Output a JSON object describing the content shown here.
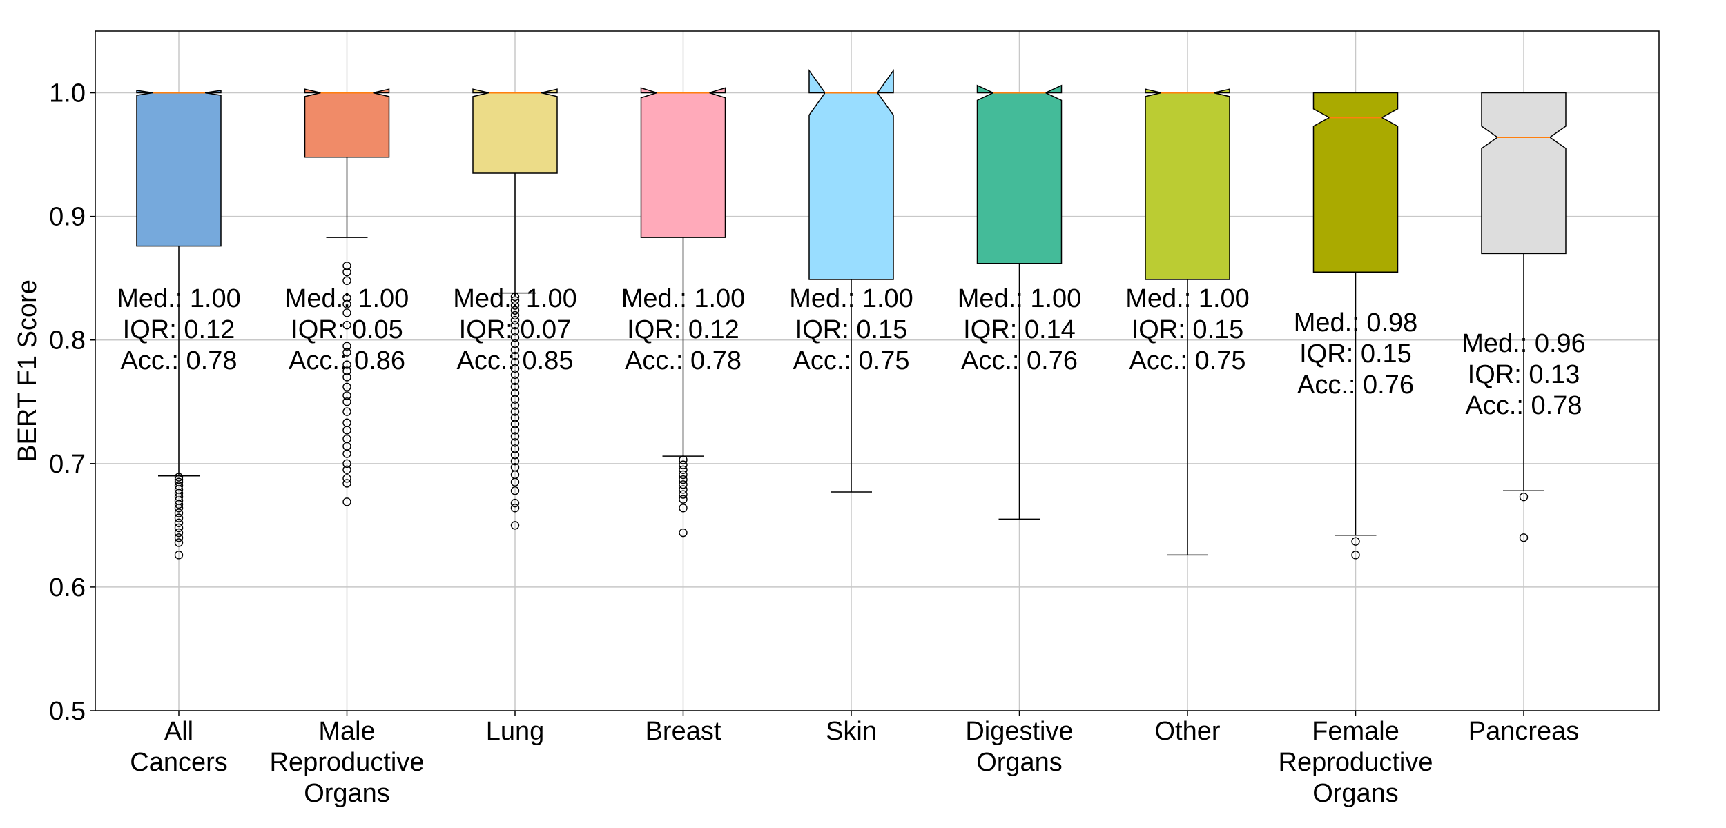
{
  "chart_data": {
    "type": "box",
    "title": "",
    "xlabel": "",
    "ylabel": "BERT F1 Score",
    "ylim": [
      0.5,
      1.05
    ],
    "yticks": [
      "0.5",
      "0.6",
      "0.7",
      "0.8",
      "0.9",
      "1.0"
    ],
    "grid": true,
    "notched": true,
    "median_color": "#ff7f0e",
    "categories": [
      {
        "label": [
          "All",
          "Cancers"
        ],
        "color": "#76a9dc",
        "q1": 0.876,
        "median": 1.0,
        "q3": 1.0,
        "notch_low": 0.998,
        "notch_high": 1.002,
        "whisker_low": 0.69,
        "whisker_high": 1.0,
        "outliers": [
          0.689,
          0.687,
          0.685,
          0.682,
          0.679,
          0.676,
          0.673,
          0.67,
          0.667,
          0.664,
          0.66,
          0.656,
          0.652,
          0.648,
          0.644,
          0.64,
          0.636,
          0.626
        ],
        "annotation": [
          "Med.: 1.00",
          "IQR: 0.12",
          "Acc.: 0.78"
        ]
      },
      {
        "label": [
          "Male",
          "Reproductive",
          "Organs"
        ],
        "color": "#f08b68",
        "q1": 0.948,
        "median": 1.0,
        "q3": 1.0,
        "notch_low": 0.997,
        "notch_high": 1.003,
        "whisker_low": 0.883,
        "whisker_high": 1.0,
        "outliers": [
          0.86,
          0.855,
          0.848,
          0.834,
          0.829,
          0.822,
          0.812,
          0.795,
          0.79,
          0.78,
          0.775,
          0.77,
          0.762,
          0.755,
          0.75,
          0.742,
          0.733,
          0.727,
          0.72,
          0.714,
          0.708,
          0.7,
          0.695,
          0.688,
          0.684,
          0.669
        ],
        "annotation": [
          "Med.: 1.00",
          "IQR: 0.05",
          "Acc.: 0.86"
        ]
      },
      {
        "label": [
          "Lung"
        ],
        "color": "#ecdc88",
        "q1": 0.935,
        "median": 1.0,
        "q3": 1.0,
        "notch_low": 0.997,
        "notch_high": 1.003,
        "whisker_low": 0.838,
        "whisker_high": 1.0,
        "outliers": [
          0.835,
          0.832,
          0.828,
          0.824,
          0.82,
          0.816,
          0.812,
          0.807,
          0.802,
          0.797,
          0.792,
          0.787,
          0.782,
          0.777,
          0.772,
          0.767,
          0.762,
          0.757,
          0.752,
          0.747,
          0.742,
          0.737,
          0.732,
          0.727,
          0.722,
          0.717,
          0.712,
          0.707,
          0.702,
          0.697,
          0.691,
          0.685,
          0.678,
          0.668,
          0.664,
          0.65
        ],
        "annotation": [
          "Med.: 1.00",
          "IQR: 0.07",
          "Acc.: 0.85"
        ]
      },
      {
        "label": [
          "Breast"
        ],
        "color": "#ffaaba",
        "q1": 0.883,
        "median": 1.0,
        "q3": 1.0,
        "notch_low": 0.996,
        "notch_high": 1.004,
        "whisker_low": 0.706,
        "whisker_high": 1.0,
        "outliers": [
          0.703,
          0.699,
          0.695,
          0.691,
          0.687,
          0.683,
          0.679,
          0.675,
          0.671,
          0.664,
          0.644
        ],
        "annotation": [
          "Med.: 1.00",
          "IQR: 0.12",
          "Acc.: 0.78"
        ]
      },
      {
        "label": [
          "Skin"
        ],
        "color": "#99ddff",
        "q1": 0.849,
        "median": 1.0,
        "q3": 1.0,
        "notch_low": 0.982,
        "notch_high": 1.018,
        "whisker_low": 0.677,
        "whisker_high": 1.0,
        "outliers": [],
        "annotation": [
          "Med.: 1.00",
          "IQR: 0.15",
          "Acc.: 0.75"
        ]
      },
      {
        "label": [
          "Digestive",
          "Organs"
        ],
        "color": "#44bb99",
        "q1": 0.862,
        "median": 1.0,
        "q3": 1.0,
        "notch_low": 0.994,
        "notch_high": 1.006,
        "whisker_low": 0.655,
        "whisker_high": 1.0,
        "outliers": [],
        "annotation": [
          "Med.: 1.00",
          "IQR: 0.14",
          "Acc.: 0.76"
        ]
      },
      {
        "label": [
          "Other"
        ],
        "color": "#bbcc33",
        "q1": 0.849,
        "median": 1.0,
        "q3": 1.0,
        "notch_low": 0.997,
        "notch_high": 1.003,
        "whisker_low": 0.626,
        "whisker_high": 1.0,
        "outliers": [],
        "annotation": [
          "Med.: 1.00",
          "IQR: 0.15",
          "Acc.: 0.75"
        ]
      },
      {
        "label": [
          "Female",
          "Reproductive",
          "Organs"
        ],
        "color": "#aaaa00",
        "q1": 0.855,
        "median": 0.98,
        "q3": 1.0,
        "notch_low": 0.973,
        "notch_high": 0.987,
        "whisker_low": 0.642,
        "whisker_high": 1.0,
        "outliers": [
          0.637,
          0.626
        ],
        "annotation": [
          "Med.: 0.98",
          "IQR: 0.15",
          "Acc.: 0.76"
        ]
      },
      {
        "label": [
          "Pancreas"
        ],
        "color": "#dddddd",
        "q1": 0.87,
        "median": 0.964,
        "q3": 1.0,
        "notch_low": 0.955,
        "notch_high": 0.973,
        "whisker_low": 0.678,
        "whisker_high": 1.0,
        "outliers": [
          0.673,
          0.64
        ],
        "annotation": [
          "Med.: 0.96",
          "IQR: 0.13",
          "Acc.: 0.78"
        ]
      }
    ]
  }
}
